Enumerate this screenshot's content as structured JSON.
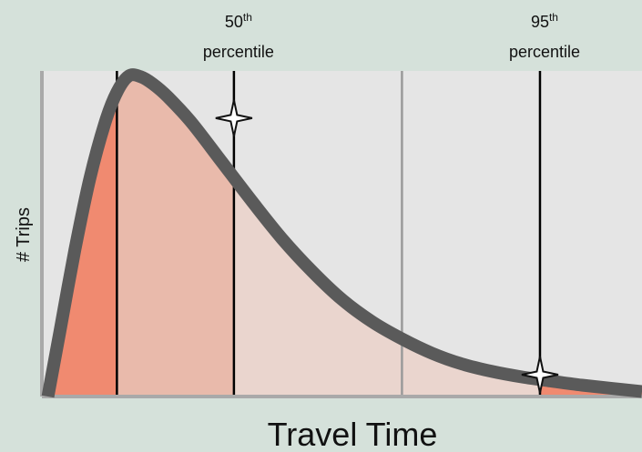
{
  "chart_data": {
    "type": "area",
    "title": "",
    "xlabel": "Travel Time",
    "ylabel": "# Trips",
    "xlim": [
      0,
      100
    ],
    "ylim": [
      0,
      100
    ],
    "grid": false,
    "legend": "none",
    "curve": {
      "x": [
        1.0,
        3.0,
        5.5,
        8.0,
        10.5,
        12.5,
        14.5,
        16.5,
        18.5,
        21.0,
        25.0,
        30.0,
        35.0,
        40.0,
        45.0,
        50.0,
        55.0,
        60.0,
        65.0,
        70.0,
        75.0,
        80.0,
        85.0,
        90.0,
        95.0,
        100.0
      ],
      "y": [
        0.0,
        20.0,
        45.0,
        67.0,
        84.0,
        93.5,
        98.5,
        98.2,
        96.0,
        92.0,
        84.0,
        72.0,
        60.0,
        48.5,
        38.5,
        29.8,
        23.0,
        17.7,
        13.3,
        10.0,
        7.7,
        6.0,
        4.7,
        3.5,
        2.5,
        1.5
      ]
    },
    "reference_lines": [
      {
        "x": 12.5,
        "label": ""
      },
      {
        "x": 32.0,
        "label": "50th percentile",
        "marker": true
      },
      {
        "x": 60.0,
        "label": ""
      },
      {
        "x": 83.0,
        "label": "95th percentile",
        "marker": true
      }
    ],
    "percentiles": [
      {
        "name": "50th percentile",
        "ordinal": "50",
        "suffix": "th",
        "word": "percentile",
        "x": 32.0,
        "y": 85.5
      },
      {
        "name": "95th percentile",
        "ordinal": "95",
        "suffix": "th",
        "word": "percentile",
        "x": 83.0,
        "y": 6.7
      }
    ],
    "bands": [
      {
        "from": 1.0,
        "to": 12.5,
        "color": "#f08a70"
      },
      {
        "from": 12.5,
        "to": 32.0,
        "color": "#e9baab"
      },
      {
        "from": 32.0,
        "to": 83.0,
        "color": "#ead5ce"
      },
      {
        "from": 83.0,
        "to": 100.0,
        "color": "#f08a70"
      }
    ],
    "colors": {
      "background": "#d5e1da",
      "plot_area": "#e5e5e5",
      "curve_stroke": "#5a5a5a",
      "axis": "#a9a9a9",
      "reference_line": "#000000",
      "median_divider": "#9a9a9a",
      "marker_fill": "#ffffff",
      "marker_stroke": "#111111"
    }
  }
}
